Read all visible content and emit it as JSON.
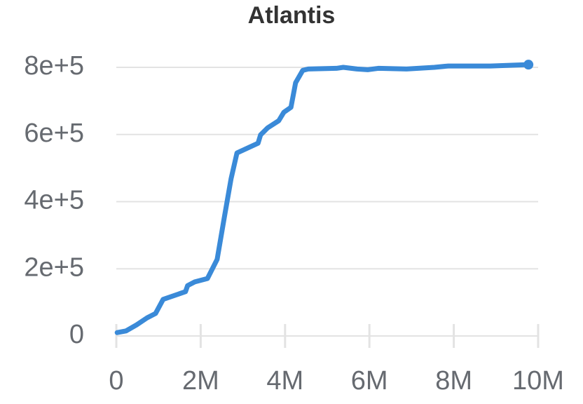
{
  "chart_data": {
    "type": "line",
    "title": "Atlantis",
    "x": [
      20000,
      230000,
      480000,
      730000,
      930000,
      1110000,
      1640000,
      1690000,
      1860000,
      2160000,
      2390000,
      2560000,
      2720000,
      2860000,
      3360000,
      3420000,
      3590000,
      3850000,
      3970000,
      4140000,
      4250000,
      4420000,
      4550000,
      5220000,
      5380000,
      5710000,
      5960000,
      6210000,
      6880000,
      7540000,
      7870000,
      8870000,
      9770000
    ],
    "series": [
      {
        "name": "Atlantis",
        "color": "#3a8ad8",
        "values": [
          10000,
          15000,
          33000,
          54000,
          67000,
          109000,
          132000,
          150000,
          161000,
          171000,
          228000,
          353000,
          468000,
          545000,
          574000,
          599000,
          620000,
          641000,
          666000,
          681000,
          754000,
          791000,
          795000,
          797000,
          800000,
          795000,
          793000,
          797000,
          795000,
          800000,
          804000,
          804000,
          808000
        ]
      }
    ],
    "xlim": [
      0,
      10000000
    ],
    "xticks": [
      0,
      {
        "value": 2000000,
        "label": "2M"
      },
      {
        "value": 4000000,
        "label": "4M"
      },
      {
        "value": 6000000,
        "label": "6M"
      },
      {
        "value": 8000000,
        "label": "8M"
      },
      {
        "value": 10000000,
        "label": "10M"
      }
    ],
    "ylim": [
      0,
      800000
    ],
    "yticks": [
      0,
      {
        "value": 200000,
        "label": "2e+5"
      },
      {
        "value": 400000,
        "label": "4e+5"
      },
      {
        "value": 600000,
        "label": "6e+5"
      },
      {
        "value": 800000,
        "label": "8e+5"
      }
    ],
    "grid": true
  }
}
